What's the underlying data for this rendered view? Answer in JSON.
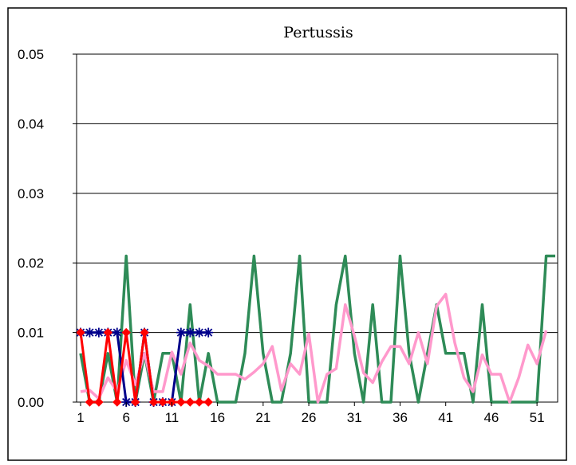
{
  "chart_data": {
    "type": "line",
    "title": "Pertussis",
    "xlabel": "",
    "ylabel": "",
    "ylim": [
      0,
      0.05
    ],
    "y_ticks": [
      "0.00",
      "0.01",
      "0.02",
      "0.03",
      "0.04",
      "0.05"
    ],
    "x_ticks": [
      "1",
      "6",
      "11",
      "16",
      "21",
      "26",
      "31",
      "36",
      "41",
      "46",
      "51"
    ],
    "grid": "horizontal",
    "legend": "none",
    "x": [
      1,
      2,
      3,
      4,
      5,
      6,
      7,
      8,
      9,
      10,
      11,
      12,
      13,
      14,
      15,
      16,
      17,
      18,
      19,
      20,
      21,
      22,
      23,
      24,
      25,
      26,
      27,
      28,
      29,
      30,
      31,
      32,
      33,
      34,
      35,
      36,
      37,
      38,
      39,
      40,
      41,
      42,
      43,
      44,
      45,
      46,
      47,
      48,
      49,
      50,
      51,
      52,
      53
    ],
    "series": [
      {
        "name": "",
        "color": "#2e8b57",
        "marker": "none",
        "values": [
          0.007,
          0,
          0,
          0.007,
          0,
          0.021,
          0,
          0.007,
          0,
          0.007,
          0.007,
          0,
          0.014,
          0,
          0.007,
          0,
          0,
          0,
          0.007,
          0.021,
          0.007,
          0,
          0,
          0.007,
          0.021,
          0,
          0,
          0,
          0.014,
          0.021,
          0.007,
          0,
          0.014,
          0,
          0,
          0.021,
          0.007,
          0,
          0.007,
          0.014,
          0.007,
          0.007,
          0.007,
          0,
          0.014,
          0,
          0,
          0,
          0,
          0,
          0,
          0.021,
          0.021
        ]
      },
      {
        "name": "",
        "color": "#ff99cc",
        "marker": "none",
        "values": [
          0.0015,
          0.0017,
          0.0005,
          0.0035,
          0.0015,
          0.006,
          0.0025,
          0.007,
          0.0015,
          0.0015,
          0.0072,
          0.004,
          0.0085,
          0.006,
          0.0052,
          0.004,
          0.004,
          0.004,
          0.0033,
          0.0043,
          0.0055,
          0.008,
          0.0017,
          0.0055,
          0.004,
          0.0098,
          0,
          0.004,
          0.0048,
          0.014,
          0.0095,
          0.0042,
          0.0028,
          0.0058,
          0.008,
          0.008,
          0.0055,
          0.01,
          0.0055,
          0.0138,
          0.0155,
          0.0085,
          0.0035,
          0.0015,
          0.0068,
          0.004,
          0.004,
          0,
          0.0035,
          0.0082,
          0.0055,
          0.0103,
          null
        ]
      },
      {
        "name": "",
        "color": "#00008b",
        "marker": "asterisk",
        "values": [
          0.01,
          0.01,
          0.01,
          0.01,
          0.01,
          0,
          0,
          0.01,
          0,
          0,
          0,
          0.01,
          0.01,
          0.01,
          0.01,
          null,
          null,
          null,
          null,
          null,
          null,
          null,
          null,
          null,
          null,
          null,
          null,
          null,
          null,
          null,
          null,
          null,
          null,
          null,
          null,
          null,
          null,
          null,
          null,
          null,
          null,
          null,
          null,
          null,
          null,
          null,
          null,
          null,
          null,
          null,
          null,
          null,
          null
        ]
      },
      {
        "name": "",
        "color": "#ff0000",
        "marker": "diamond",
        "values": [
          0.01,
          0,
          0,
          0.01,
          0,
          0.01,
          0,
          0.01,
          0,
          0,
          0,
          0,
          0,
          0,
          0,
          null,
          null,
          null,
          null,
          null,
          null,
          null,
          null,
          null,
          null,
          null,
          null,
          null,
          null,
          null,
          null,
          null,
          null,
          null,
          null,
          null,
          null,
          null,
          null,
          null,
          null,
          null,
          null,
          null,
          null,
          null,
          null,
          null,
          null,
          null,
          null,
          null,
          null
        ]
      }
    ]
  }
}
